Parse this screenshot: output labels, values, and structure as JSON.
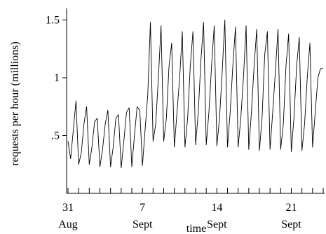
{
  "chart_data": {
    "type": "line",
    "xlabel": "time",
    "ylabel": "requests per hour (millions)",
    "ylim": [
      0,
      1.6
    ],
    "xlim": [
      "2023-08-31",
      "2023-09-24"
    ],
    "x_ticks": [
      {
        "date": "2023-08-31",
        "day": "31",
        "month": "Aug"
      },
      {
        "date": "2023-09-07",
        "day": "7",
        "month": "Sept"
      },
      {
        "date": "2023-09-14",
        "day": "14",
        "month": "Sept"
      },
      {
        "date": "2023-09-21",
        "day": "21",
        "month": "Sept"
      }
    ],
    "y_ticks": [
      {
        "value": 0.5,
        "label": ".5"
      },
      {
        "value": 1.0,
        "label": "1"
      },
      {
        "value": 1.5,
        "label": "1.5"
      }
    ],
    "series": [
      {
        "x": [
          "2023-08-31 00:00",
          "2023-08-31 06:00",
          "2023-08-31 12:00",
          "2023-08-31 18:00",
          "2023-09-01 00:00",
          "2023-09-01 06:00",
          "2023-09-01 12:00",
          "2023-09-01 18:00",
          "2023-09-02 00:00",
          "2023-09-02 06:00",
          "2023-09-02 12:00",
          "2023-09-02 18:00",
          "2023-09-03 00:00",
          "2023-09-03 06:00",
          "2023-09-03 12:00",
          "2023-09-03 18:00",
          "2023-09-04 00:00",
          "2023-09-04 06:00",
          "2023-09-04 12:00",
          "2023-09-04 18:00",
          "2023-09-05 00:00",
          "2023-09-05 06:00",
          "2023-09-05 12:00",
          "2023-09-05 18:00",
          "2023-09-06 00:00",
          "2023-09-06 06:00",
          "2023-09-06 12:00",
          "2023-09-06 18:00",
          "2023-09-07 00:00",
          "2023-09-07 06:00",
          "2023-09-07 12:00",
          "2023-09-07 18:00",
          "2023-09-08 00:00",
          "2023-09-08 06:00",
          "2023-09-08 12:00",
          "2023-09-08 18:00",
          "2023-09-09 00:00",
          "2023-09-09 06:00",
          "2023-09-09 12:00",
          "2023-09-09 18:00",
          "2023-09-10 00:00",
          "2023-09-10 06:00",
          "2023-09-10 12:00",
          "2023-09-10 18:00",
          "2023-09-11 00:00",
          "2023-09-11 06:00",
          "2023-09-11 12:00",
          "2023-09-11 18:00",
          "2023-09-12 00:00",
          "2023-09-12 06:00",
          "2023-09-12 12:00",
          "2023-09-12 18:00",
          "2023-09-13 00:00",
          "2023-09-13 06:00",
          "2023-09-13 12:00",
          "2023-09-13 18:00",
          "2023-09-14 00:00",
          "2023-09-14 06:00",
          "2023-09-14 12:00",
          "2023-09-14 18:00",
          "2023-09-15 00:00",
          "2023-09-15 06:00",
          "2023-09-15 12:00",
          "2023-09-15 18:00",
          "2023-09-16 00:00",
          "2023-09-16 06:00",
          "2023-09-16 12:00",
          "2023-09-16 18:00",
          "2023-09-17 00:00",
          "2023-09-17 06:00",
          "2023-09-17 12:00",
          "2023-09-17 18:00",
          "2023-09-18 00:00",
          "2023-09-18 06:00",
          "2023-09-18 12:00",
          "2023-09-18 18:00",
          "2023-09-19 00:00",
          "2023-09-19 06:00",
          "2023-09-19 12:00",
          "2023-09-19 18:00",
          "2023-09-20 00:00",
          "2023-09-20 06:00",
          "2023-09-20 12:00",
          "2023-09-20 18:00",
          "2023-09-21 00:00",
          "2023-09-21 06:00",
          "2023-09-21 12:00",
          "2023-09-21 18:00",
          "2023-09-22 00:00",
          "2023-09-22 06:00",
          "2023-09-22 12:00",
          "2023-09-22 18:00",
          "2023-09-23 00:00",
          "2023-09-23 06:00",
          "2023-09-23 12:00",
          "2023-09-23 18:00",
          "2023-09-24 00:00"
        ],
        "y": [
          0.45,
          0.3,
          0.55,
          0.8,
          0.25,
          0.35,
          0.6,
          0.75,
          0.25,
          0.4,
          0.62,
          0.65,
          0.23,
          0.38,
          0.6,
          0.72,
          0.23,
          0.4,
          0.65,
          0.68,
          0.22,
          0.45,
          0.7,
          0.74,
          0.23,
          0.5,
          0.75,
          0.72,
          0.24,
          0.55,
          0.85,
          1.48,
          0.45,
          0.6,
          1.0,
          1.45,
          0.45,
          0.65,
          1.1,
          1.3,
          0.4,
          0.7,
          1.0,
          1.4,
          0.4,
          0.65,
          1.1,
          1.4,
          0.42,
          0.7,
          1.15,
          1.48,
          0.42,
          0.7,
          1.1,
          1.45,
          0.41,
          0.65,
          1.05,
          1.5,
          0.4,
          0.7,
          1.1,
          1.44,
          0.4,
          0.65,
          1.0,
          1.45,
          0.38,
          0.7,
          1.1,
          1.42,
          0.37,
          0.65,
          1.2,
          1.4,
          0.38,
          0.7,
          1.05,
          1.42,
          0.38,
          0.6,
          1.1,
          1.38,
          0.36,
          0.65,
          1.1,
          1.35,
          0.37,
          0.6,
          1.0,
          1.3,
          0.4,
          0.7,
          1.0,
          1.08,
          1.08
        ]
      }
    ]
  }
}
